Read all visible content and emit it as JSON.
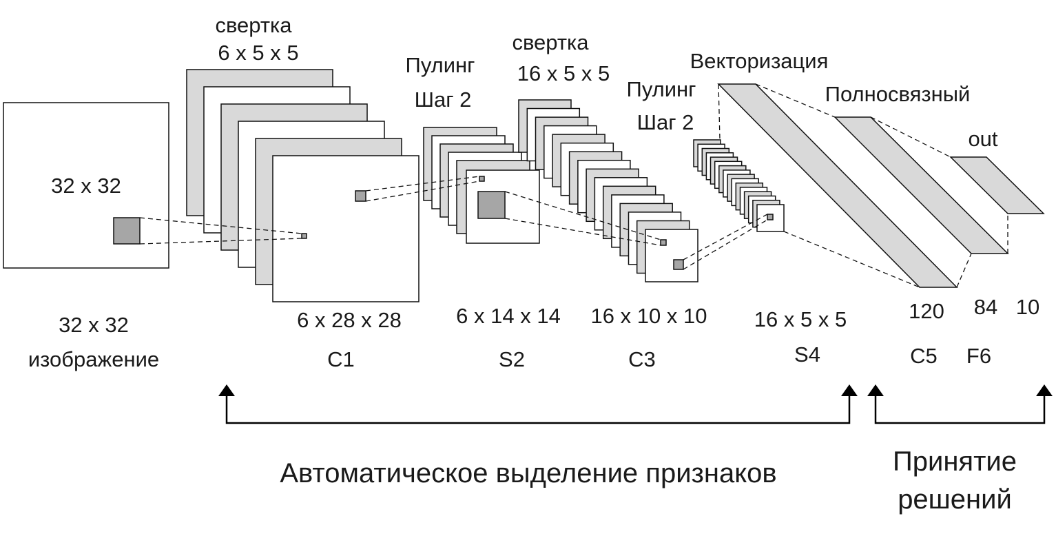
{
  "colors": {
    "light": "#d9d9d9",
    "white": "#ffffff",
    "kernel": "#a6a6a6",
    "stroke": "#111111"
  },
  "labels": {
    "input_size": "32 x 32",
    "input_caption_line1": "32 x 32",
    "input_caption_line2": "изображение",
    "conv1_title_line1": "свертка",
    "conv1_title_line2": "6 x 5 x 5",
    "c1_dims": "6 x 28 x 28",
    "c1_name": "C1",
    "pool1_title_line1": "Пулинг",
    "pool1_title_line2": "Шаг 2",
    "s2_dims": "6 x 14 x 14",
    "s2_name": "S2",
    "conv2_title_line1": "свертка",
    "conv2_title_line2": "16 x 5 x 5",
    "c3_dims": "16 x 10 x 10",
    "c3_name": "C3",
    "pool2_title_line1": "Пулинг",
    "pool2_title_line2": "Шаг 2",
    "s4_dims": "16 x 5 x 5",
    "s4_name": "S4",
    "vectorize": "Векторизация",
    "fully_connected": "Полносвязный",
    "out": "out",
    "c5_size": "120",
    "f6_size": "84",
    "out_size": "10",
    "c5_name": "C5",
    "f6_name": "F6",
    "feature_extraction": "Автоматическое выделение признаков",
    "decision_line1": "Принятие",
    "decision_line2": "решений"
  }
}
